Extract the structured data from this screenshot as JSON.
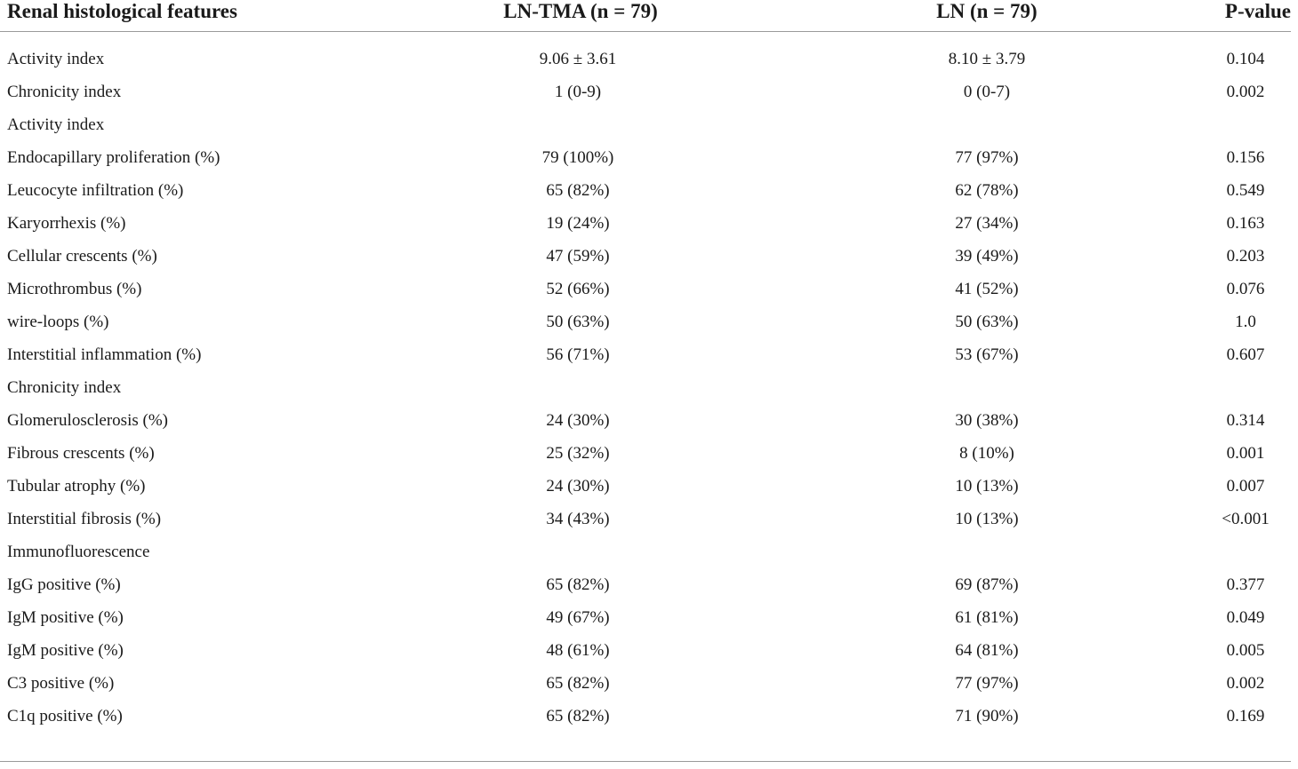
{
  "table": {
    "headers": [
      "Renal histological features",
      "LN-TMA (n = 79)",
      "LN (n = 79)",
      "P-value"
    ],
    "rows": [
      [
        "Activity index",
        "9.06 ± 3.61",
        "8.10 ± 3.79",
        "0.104"
      ],
      [
        "Chronicity index",
        "1 (0-9)",
        "0 (0-7)",
        "0.002"
      ],
      [
        "Activity index",
        "",
        "",
        ""
      ],
      [
        "Endocapillary proliferation (%)",
        "79 (100%)",
        "77 (97%)",
        "0.156"
      ],
      [
        "Leucocyte infiltration (%)",
        "65 (82%)",
        "62 (78%)",
        "0.549"
      ],
      [
        "Karyorrhexis (%)",
        "19 (24%)",
        "27 (34%)",
        "0.163"
      ],
      [
        "Cellular crescents (%)",
        "47 (59%)",
        "39 (49%)",
        "0.203"
      ],
      [
        "Microthrombus (%)",
        "52 (66%)",
        "41 (52%)",
        "0.076"
      ],
      [
        "wire-loops (%)",
        "50 (63%)",
        "50 (63%)",
        "1.0"
      ],
      [
        "Interstitial inflammation (%)",
        "56 (71%)",
        "53 (67%)",
        "0.607"
      ],
      [
        "Chronicity index",
        "",
        "",
        ""
      ],
      [
        "Glomerulosclerosis (%)",
        "24 (30%)",
        "30 (38%)",
        "0.314"
      ],
      [
        "Fibrous crescents (%)",
        "25 (32%)",
        "8 (10%)",
        "0.001"
      ],
      [
        "Tubular atrophy (%)",
        "24 (30%)",
        "10 (13%)",
        "0.007"
      ],
      [
        "Interstitial fibrosis (%)",
        "34 (43%)",
        "10 (13%)",
        "<0.001"
      ],
      [
        "Immunofluorescence",
        "",
        "",
        ""
      ],
      [
        "IgG positive (%)",
        "65 (82%)",
        "69 (87%)",
        "0.377"
      ],
      [
        "IgM positive (%)",
        "49 (67%)",
        "61 (81%)",
        "0.049"
      ],
      [
        "IgM positive (%)",
        "48 (61%)",
        "64 (81%)",
        "0.005"
      ],
      [
        "C3 positive (%)",
        "65 (82%)",
        "77 (97%)",
        "0.002"
      ],
      [
        "C1q positive (%)",
        "65 (82%)",
        "71 (90%)",
        "0.169"
      ]
    ]
  }
}
